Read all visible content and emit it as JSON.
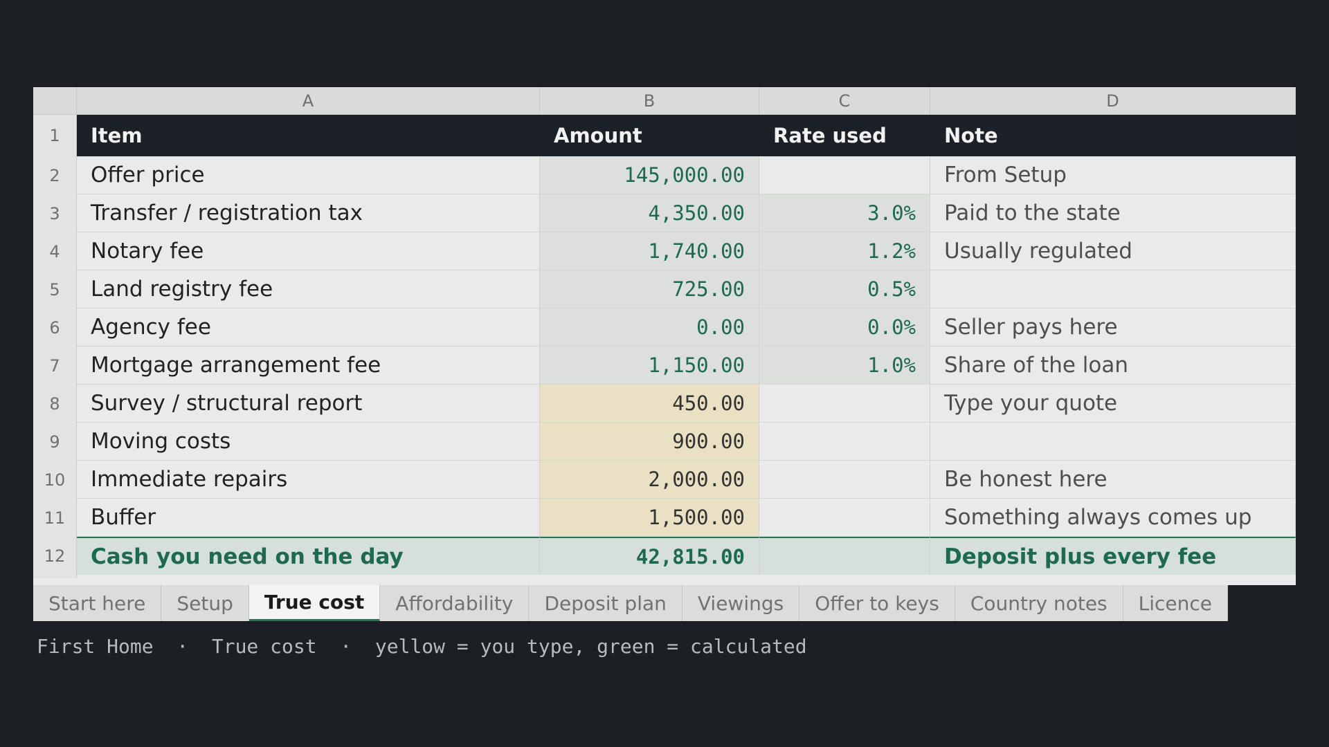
{
  "columns": [
    "A",
    "B",
    "C",
    "D"
  ],
  "header": {
    "item": "Item",
    "amount": "Amount",
    "rate": "Rate used",
    "note": "Note"
  },
  "rows": [
    {
      "num": "2",
      "item": "Offer price",
      "amount": "145,000.00",
      "rate": "",
      "note": "From Setup",
      "kind": "calc"
    },
    {
      "num": "3",
      "item": "Transfer / registration tax",
      "amount": "4,350.00",
      "rate": "3.0%",
      "note": "Paid to the state",
      "kind": "calc"
    },
    {
      "num": "4",
      "item": "Notary fee",
      "amount": "1,740.00",
      "rate": "1.2%",
      "note": "Usually regulated",
      "kind": "calc"
    },
    {
      "num": "5",
      "item": "Land registry fee",
      "amount": "725.00",
      "rate": "0.5%",
      "note": "",
      "kind": "calc"
    },
    {
      "num": "6",
      "item": "Agency fee",
      "amount": "0.00",
      "rate": "0.0%",
      "note": "Seller pays here",
      "kind": "calc"
    },
    {
      "num": "7",
      "item": "Mortgage arrangement fee",
      "amount": "1,150.00",
      "rate": "1.0%",
      "note": "Share of the loan",
      "kind": "calc"
    },
    {
      "num": "8",
      "item": "Survey / structural report",
      "amount": "450.00",
      "rate": "",
      "note": "Type your quote",
      "kind": "input"
    },
    {
      "num": "9",
      "item": "Moving costs",
      "amount": "900.00",
      "rate": "",
      "note": "",
      "kind": "input"
    },
    {
      "num": "10",
      "item": "Immediate repairs",
      "amount": "2,000.00",
      "rate": "",
      "note": "Be honest here",
      "kind": "input"
    },
    {
      "num": "11",
      "item": "Buffer",
      "amount": "1,500.00",
      "rate": "",
      "note": "Something always comes up",
      "kind": "input"
    }
  ],
  "total": {
    "num": "12",
    "item": "Cash you need on the day",
    "amount": "42,815.00",
    "rate": "",
    "note": "Deposit plus every fee"
  },
  "tabs": [
    "Start here",
    "Setup",
    "True cost",
    "Affordability",
    "Deposit plan",
    "Viewings",
    "Offer to keys",
    "Country notes",
    "Licence"
  ],
  "active_tab": "True cost",
  "caption": "First Home  ·  True cost  ·  yellow = you type, green = calculated",
  "colors": {
    "accent": "#2f6f56",
    "input_fill": "#eae1c5",
    "calc_fill": "#dcdfdc",
    "header_fill": "#1c2128"
  }
}
